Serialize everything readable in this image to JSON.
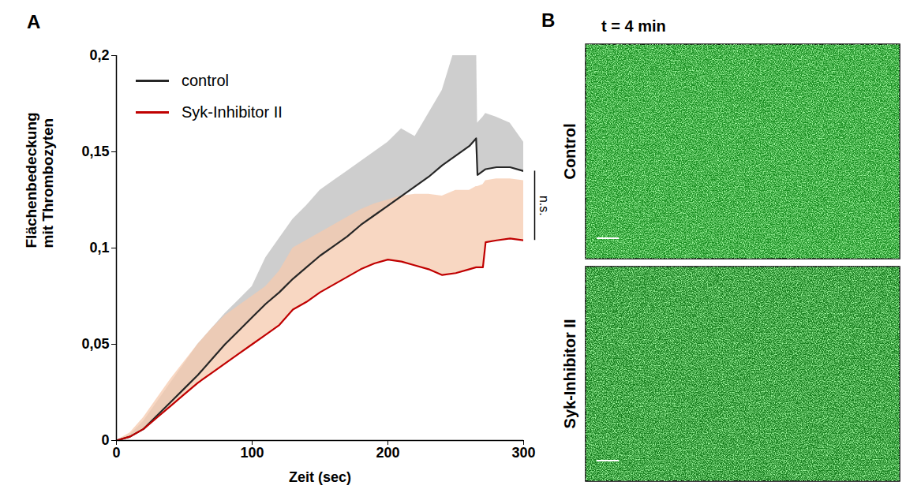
{
  "chart_data": {
    "type": "line",
    "panel_label": "A",
    "xlabel": "Zeit (sec)",
    "ylabel": "Flächenbedeckung mit Thrombozyten",
    "x": [
      0,
      10,
      20,
      30,
      40,
      50,
      60,
      70,
      80,
      90,
      100,
      110,
      120,
      130,
      140,
      150,
      160,
      170,
      180,
      190,
      200,
      210,
      220,
      230,
      240,
      250,
      260,
      265,
      266,
      270,
      272,
      280,
      290,
      300
    ],
    "series": [
      {
        "name": "control",
        "color": "#262626",
        "line_style": "solid",
        "values": [
          0,
          0.002,
          0.006,
          0.013,
          0.02,
          0.027,
          0.034,
          0.042,
          0.05,
          0.057,
          0.064,
          0.071,
          0.077,
          0.084,
          0.09,
          0.096,
          0.101,
          0.106,
          0.112,
          0.117,
          0.122,
          0.127,
          0.132,
          0.137,
          0.143,
          0.148,
          0.153,
          0.157,
          0.138,
          0.14,
          0.141,
          0.142,
          0.142,
          0.14
        ],
        "sd": [
          0,
          0.001,
          0.004,
          0.007,
          0.01,
          0.013,
          0.016,
          0.016,
          0.016,
          0.016,
          0.016,
          0.024,
          0.028,
          0.031,
          0.032,
          0.034,
          0.034,
          0.034,
          0.033,
          0.033,
          0.033,
          0.035,
          0.026,
          0.033,
          0.039,
          0.057,
          0.062,
          0.063,
          0.027,
          0.028,
          0.029,
          0.026,
          0.023,
          0.015
        ]
      },
      {
        "name": "Syk-Inhibitor II",
        "color": "#c00000",
        "line_style": "solid",
        "values": [
          0,
          0.002,
          0.006,
          0.012,
          0.018,
          0.024,
          0.03,
          0.035,
          0.04,
          0.045,
          0.05,
          0.055,
          0.06,
          0.068,
          0.072,
          0.077,
          0.081,
          0.085,
          0.089,
          0.092,
          0.094,
          0.093,
          0.091,
          0.089,
          0.086,
          0.087,
          0.089,
          0.09,
          0.09,
          0.09,
          0.103,
          0.104,
          0.105,
          0.104
        ],
        "sd": [
          0,
          0.002,
          0.006,
          0.01,
          0.014,
          0.017,
          0.02,
          0.023,
          0.025,
          0.025,
          0.025,
          0.025,
          0.028,
          0.032,
          0.032,
          0.031,
          0.031,
          0.031,
          0.031,
          0.031,
          0.031,
          0.034,
          0.037,
          0.039,
          0.041,
          0.043,
          0.041,
          0.042,
          0.042,
          0.043,
          0.032,
          0.032,
          0.031,
          0.031
        ]
      }
    ],
    "xlim": [
      0,
      300
    ],
    "xticks": [
      0,
      100,
      200,
      300
    ],
    "ylim": [
      0,
      0.2
    ],
    "yticks": [
      0,
      {
        "value": 0.05,
        "label": "0,05"
      },
      {
        "value": 0.1,
        "label": "0,1"
      },
      {
        "value": 0.15,
        "label": "0,15"
      },
      {
        "value": 0.2,
        "label": "0,2"
      }
    ],
    "grid": false,
    "legend": "top-left",
    "annotations": [
      {
        "text": "n.s."
      }
    ]
  },
  "panel_b": {
    "panel_label": "B",
    "title": "t = 4 min",
    "rows": [
      "Control",
      "Syk-Inhibitor II"
    ]
  }
}
